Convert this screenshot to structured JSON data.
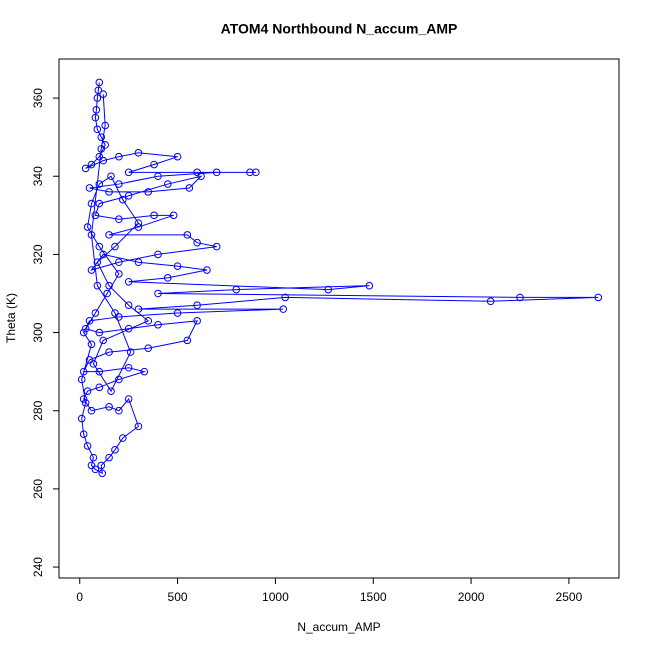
{
  "chart_data": {
    "type": "line",
    "title": "ATOM4 Northbound N_accum_AMP",
    "x_label": "N_accum_AMP",
    "y_label": "Theta (K)",
    "x": [
      100,
      95,
      90,
      85,
      80,
      90,
      110,
      130,
      100,
      60,
      30,
      120,
      200,
      300,
      500,
      380,
      250,
      600,
      870,
      900,
      700,
      400,
      200,
      50,
      150,
      350,
      560,
      620,
      450,
      250,
      100,
      80,
      200,
      380,
      480,
      300,
      150,
      550,
      600,
      700,
      400,
      200,
      60,
      120,
      300,
      500,
      650,
      450,
      250,
      1270,
      1480,
      800,
      400,
      2250,
      2650,
      2100,
      1050,
      600,
      300,
      1040,
      500,
      200,
      50,
      30,
      100,
      250,
      400,
      600,
      550,
      350,
      150,
      50,
      20,
      100,
      250,
      330,
      200,
      100,
      40,
      20,
      60,
      150,
      200,
      250,
      300,
      220,
      180,
      150,
      110,
      115,
      80,
      60,
      70,
      40,
      20,
      10,
      30,
      10,
      60,
      20,
      80,
      140,
      200,
      100,
      40,
      60,
      100,
      160,
      220,
      300,
      180,
      90,
      150,
      250,
      350,
      120,
      70,
      160,
      260,
      180,
      90,
      60,
      110,
      130,
      120
    ],
    "series": [
      {
        "color": "#0000ff",
        "values": [
          364,
          362,
          360,
          357,
          355,
          352,
          350,
          348,
          345,
          343,
          342,
          344,
          345,
          346,
          345,
          343,
          341,
          341,
          341,
          341,
          341,
          340,
          338,
          337,
          336,
          336,
          337,
          340,
          338,
          335,
          333,
          330,
          329,
          330,
          330,
          327,
          325,
          325,
          323,
          322,
          320,
          318,
          316,
          320,
          318,
          317,
          316,
          314,
          313,
          311,
          312,
          311,
          310,
          309,
          309,
          308,
          309,
          307,
          306,
          306,
          305,
          304,
          303,
          301,
          300,
          301,
          302,
          303,
          298,
          296,
          295,
          293,
          290,
          290,
          291,
          290,
          288,
          286,
          285,
          283,
          280,
          281,
          280,
          283,
          276,
          273,
          270,
          268,
          266,
          264,
          265,
          266,
          268,
          271,
          274,
          278,
          282,
          288,
          297,
          300,
          305,
          310,
          315,
          322,
          327,
          333,
          338,
          340,
          334,
          328,
          322,
          318,
          312,
          307,
          303,
          298,
          292,
          285,
          295,
          305,
          312,
          325,
          347,
          353,
          361
        ]
      }
    ],
    "xlim": [
      -106,
      2756
    ],
    "ylim": [
      237.2,
      370
    ],
    "xticks": [
      0,
      500,
      1000,
      1500,
      2000,
      2500
    ],
    "yticks": [
      240,
      260,
      280,
      300,
      320,
      340,
      360
    ],
    "grid": false
  }
}
